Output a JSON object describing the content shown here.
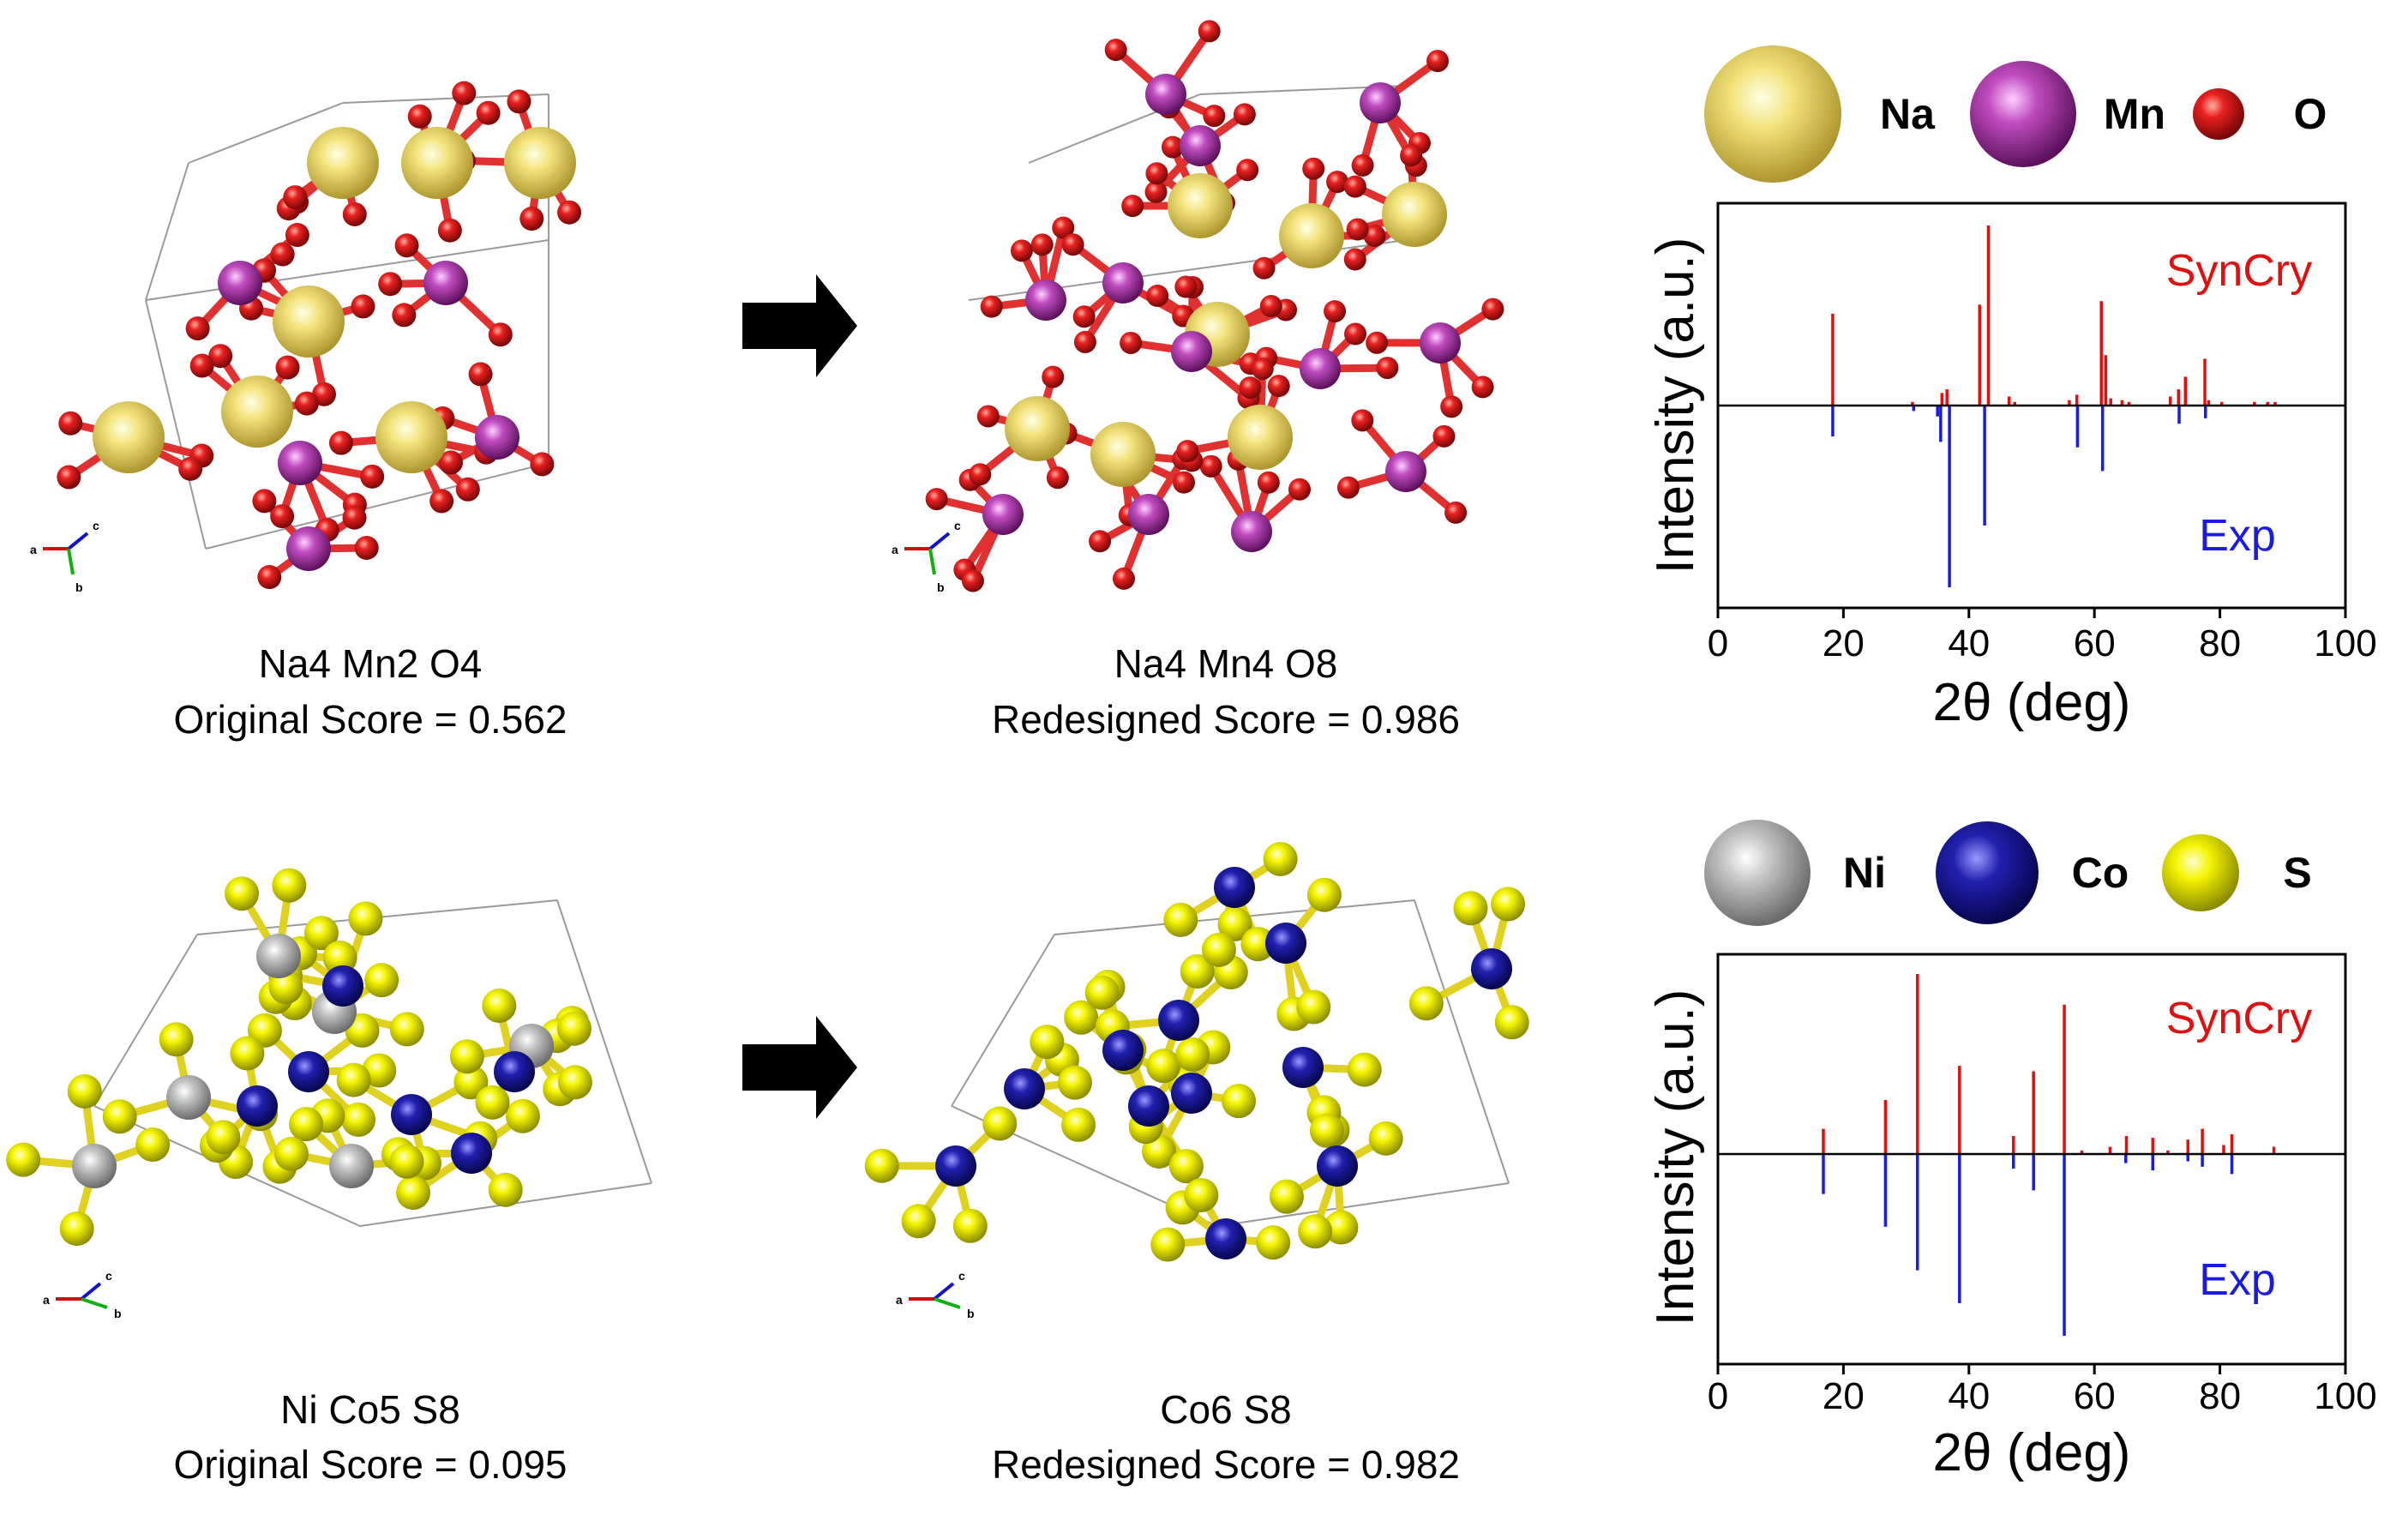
{
  "rows": [
    {
      "original": {
        "formula": "Na4 Mn2 O4",
        "score": "Original Score = 0.562"
      },
      "redesigned": {
        "formula": "Na4 Mn4 O8",
        "score": "Redesigned Score = 0.986"
      },
      "legend": [
        {
          "symbol": "Na",
          "color": "#e8d25a"
        },
        {
          "symbol": "Mn",
          "color": "#b33fb3"
        },
        {
          "symbol": "O",
          "color": "#e02020"
        }
      ]
    },
    {
      "original": {
        "formula": "Ni Co5 S8",
        "score": "Original Score = 0.095"
      },
      "redesigned": {
        "formula": "Co6 S8",
        "score": "Redesigned Score = 0.982"
      },
      "legend": [
        {
          "symbol": "Ni",
          "color": "#b8b8b8"
        },
        {
          "symbol": "Co",
          "color": "#1a1aa8"
        },
        {
          "symbol": "S",
          "color": "#f0f000"
        }
      ]
    }
  ],
  "axis_glyphs": {
    "a": "a",
    "b": "b",
    "c": "c"
  },
  "chart_data": [
    {
      "type": "bar",
      "title": "",
      "xlabel": "2θ (deg)",
      "ylabel": "Intensity (a.u.)",
      "xlim": [
        0,
        100
      ],
      "xticks": [
        "0",
        "20",
        "40",
        "60",
        "80",
        "100"
      ],
      "ylim": [
        -1,
        1
      ],
      "series": [
        {
          "name": "SynCry",
          "color": "#e01010",
          "x": [
            18.3,
            31.0,
            35.7,
            36.5,
            41.7,
            43.1,
            46.4,
            47.3,
            56.0,
            57.2,
            61.1,
            61.8,
            62.6,
            64.4,
            65.5,
            72.1,
            73.4,
            74.5,
            77.6,
            78.2,
            80.3,
            85.5,
            87.6,
            88.8
          ],
          "values": [
            0.51,
            0.02,
            0.07,
            0.09,
            0.56,
            1.0,
            0.05,
            0.02,
            0.03,
            0.06,
            0.58,
            0.28,
            0.04,
            0.03,
            0.02,
            0.05,
            0.09,
            0.16,
            0.26,
            0.03,
            0.02,
            0.02,
            0.02,
            0.02
          ]
        },
        {
          "name": "Exp",
          "color": "#1a1ae0",
          "x": [
            18.3,
            31.2,
            35.0,
            35.5,
            36.9,
            42.5,
            57.3,
            61.3,
            73.5,
            77.7
          ],
          "values": [
            0.17,
            0.03,
            0.06,
            0.2,
            1.0,
            0.66,
            0.23,
            0.36,
            0.1,
            0.07
          ]
        }
      ],
      "annotations": {
        "top": "SynCry",
        "bottom": "Exp"
      }
    },
    {
      "type": "bar",
      "title": "",
      "xlabel": "2θ (deg)",
      "ylabel": "Intensity (a.u.)",
      "xlim": [
        0,
        100
      ],
      "xticks": [
        "0",
        "20",
        "40",
        "60",
        "80",
        "100"
      ],
      "ylim": [
        -1,
        1
      ],
      "series": [
        {
          "name": "SynCry",
          "color": "#e01010",
          "x": [
            16.8,
            26.7,
            31.8,
            38.5,
            47.1,
            50.3,
            55.2,
            58.0,
            62.5,
            65.1,
            69.3,
            71.7,
            74.9,
            77.2,
            80.6,
            81.9,
            88.6
          ],
          "values": [
            0.14,
            0.3,
            1.0,
            0.49,
            0.1,
            0.46,
            0.83,
            0.02,
            0.04,
            0.1,
            0.09,
            0.02,
            0.08,
            0.14,
            0.05,
            0.11,
            0.04
          ]
        },
        {
          "name": "Exp",
          "color": "#1a1ae0",
          "x": [
            16.8,
            26.7,
            31.8,
            38.5,
            47.1,
            50.3,
            55.2,
            65.0,
            69.3,
            74.9,
            77.2,
            81.9
          ],
          "values": [
            0.22,
            0.4,
            0.64,
            0.82,
            0.08,
            0.2,
            1.0,
            0.05,
            0.09,
            0.04,
            0.07,
            0.11
          ]
        }
      ],
      "annotations": {
        "top": "SynCry",
        "bottom": "Exp"
      }
    }
  ]
}
